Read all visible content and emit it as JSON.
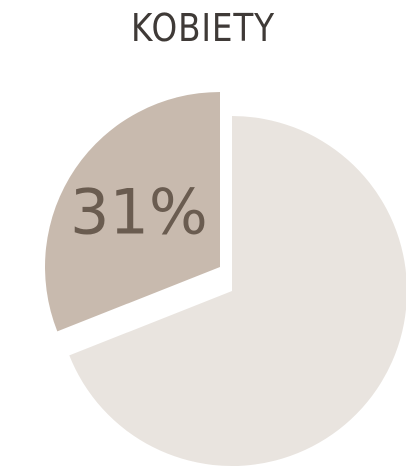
{
  "chart_data": {
    "type": "pie",
    "title": "KOBIETY",
    "slices": [
      {
        "label": "31%",
        "value": 31,
        "color": "#c8baae",
        "exploded": true
      },
      {
        "label": "",
        "value": 69,
        "color": "#e9e4df",
        "exploded": false
      }
    ],
    "label_color": "#6a5c50"
  }
}
